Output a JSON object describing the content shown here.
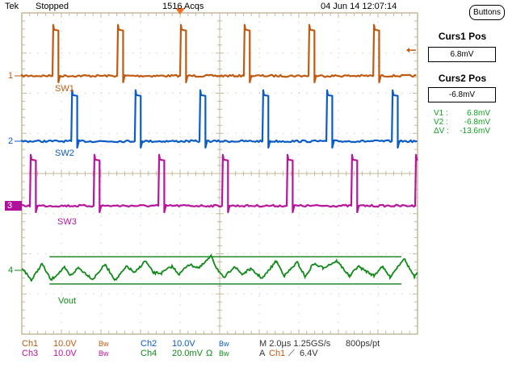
{
  "header": {
    "brand": "Tek",
    "status": "Stopped",
    "acquisitions": "1516 Acqs",
    "datetime": "04 Jun 14 12:07:14"
  },
  "buttons_label": "Buttons",
  "cursor_panel": {
    "curs1_title": "Curs1 Pos",
    "curs1_value": "6.8mV",
    "curs2_title": "Curs2 Pos",
    "curs2_value": "-6.8mV",
    "readouts": [
      {
        "key": "V1 :",
        "value": "6.8mV"
      },
      {
        "key": "V2 :",
        "value": "-6.8mV"
      },
      {
        "key": "ΔV :",
        "value": "-13.6mV"
      }
    ]
  },
  "channel_markers": [
    "1",
    "2",
    "3",
    "4"
  ],
  "trace_labels": {
    "ch1": "SW1",
    "ch2": "SW2",
    "ch3": "SW3",
    "ch4": "Vout"
  },
  "status_bar": {
    "ch1": {
      "name": "Ch1",
      "scale": "10.0V",
      "bw": "Bw"
    },
    "ch2": {
      "name": "Ch2",
      "scale": "10.0V",
      "bw": "Bw"
    },
    "ch3": {
      "name": "Ch3",
      "scale": "10.0V",
      "bw": "Bw"
    },
    "ch4": {
      "name": "Ch4",
      "scale": "20.0mV",
      "impedance": "Ω",
      "bw": "Bw"
    },
    "timebase": "M 2.0µs 1.25GS/s",
    "resolution": "800ps/pt",
    "trigger": {
      "mode": "A",
      "source": "Ch1",
      "slope": "⟋",
      "level": "6.4V"
    }
  },
  "colors": {
    "ch1": "#c05a10",
    "ch2": "#0a5cc8",
    "ch3": "#b8149e",
    "ch4": "#108a18",
    "grid": "#c4b89c",
    "cursor": "#1f8a2a"
  },
  "chart_data": {
    "type": "line",
    "x_unit": "µs",
    "time_per_div_us": 2.0,
    "xlim": [
      -8.0,
      12.0
    ],
    "grid": true,
    "trigger_time_us": 0,
    "series": [
      {
        "name": "SW1",
        "channel": "Ch1",
        "volts_per_div": 10.0,
        "low_V": 0,
        "high_V": 11.5,
        "pulse_width_us": 0.3,
        "rising_edges_us": [
          -6.45,
          -3.18,
          0.0,
          3.22,
          6.49,
          9.76
        ]
      },
      {
        "name": "SW2",
        "channel": "Ch2",
        "volts_per_div": 10.0,
        "low_V": 0,
        "high_V": 11.5,
        "pulse_width_us": 0.3,
        "rising_edges_us": [
          -5.5,
          -2.29,
          0.98,
          4.16,
          7.39,
          10.7
        ]
      },
      {
        "name": "SW3",
        "channel": "Ch3",
        "volts_per_div": 10.0,
        "low_V": 0,
        "high_V": 11.5,
        "pulse_width_us": 0.3,
        "rising_edges_us": [
          -7.59,
          -4.37,
          -1.1,
          2.12,
          5.39,
          8.65,
          11.88
        ]
      },
      {
        "name": "Vout",
        "channel": "Ch4",
        "volts_per_div_mV": 20.0,
        "unit": "mV",
        "t_us": [
          -8.0,
          -7.51,
          -6.98,
          -6.53,
          -5.84,
          -5.55,
          -5.14,
          -4.41,
          -3.8,
          -3.27,
          -2.69,
          -2.29,
          -1.76,
          -1.35,
          -0.94,
          -0.41,
          -0.04,
          0.41,
          0.98,
          1.59,
          1.8,
          2.2,
          2.73,
          3.14,
          3.55,
          4.16,
          4.86,
          5.27,
          5.92,
          6.33,
          6.73,
          7.22,
          7.92,
          8.57,
          8.98,
          9.8,
          10.2,
          10.61,
          11.31,
          11.84,
          12.0
        ],
        "v_mV": [
          1.3,
          -4.9,
          3.3,
          -4.8,
          1.3,
          -2.7,
          1.3,
          -4.4,
          2.9,
          -4.9,
          2.0,
          -1.3,
          4.8,
          -1.3,
          -1.3,
          2.0,
          -2.0,
          2.9,
          1.3,
          7.2,
          2.0,
          -4.0,
          2.0,
          -2.0,
          0.7,
          -4.0,
          4.7,
          -2.7,
          4.0,
          -3.3,
          3.3,
          1.3,
          4.7,
          -3.0,
          2.0,
          -2.7,
          2.0,
          -3.3,
          6.0,
          -3.3,
          -1.3
        ]
      }
    ],
    "cursors_mV": [
      6.8,
      -6.8
    ],
    "trigger_level_V": 6.4
  }
}
